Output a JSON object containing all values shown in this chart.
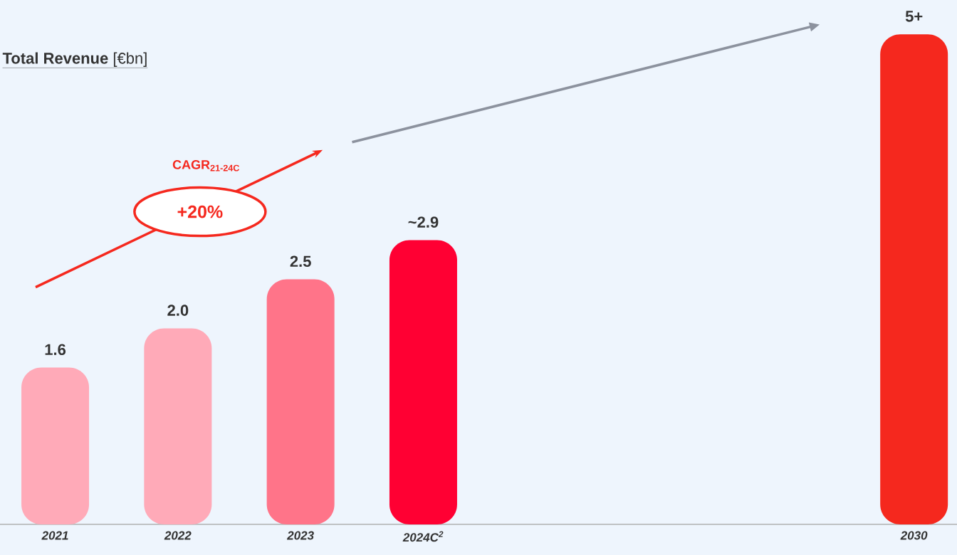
{
  "chart_data": {
    "type": "bar",
    "title": "**Total Revenue** [€bn]",
    "categories": [
      "2021",
      "2022",
      "2023",
      "2024C$^{2}$",
      null,
      null,
      null,
      "2030"
    ],
    "values": [
      1.6,
      2.0,
      2.5,
      2.9,
      null,
      null,
      null,
      5
    ],
    "value_labels": [
      "1.6",
      "2.0",
      "2.5",
      "~2.9",
      null,
      null,
      null,
      "5+"
    ],
    "colors": [
      "#ffaab8",
      "#ffaab8",
      "#ff7489",
      "#ff0033",
      null,
      null,
      null,
      "#f5281e"
    ],
    "annotations": [
      "CAGR$_{21-24C}$",
      "+20%"
    ]
  }
}
